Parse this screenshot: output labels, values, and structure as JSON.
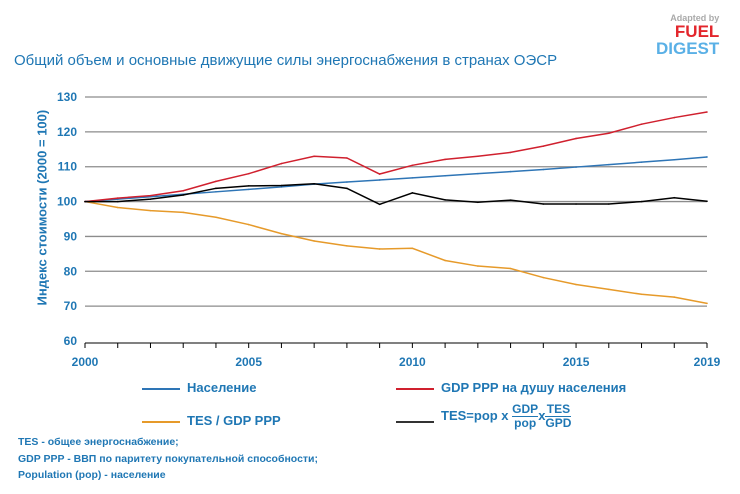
{
  "logo": {
    "line1": "Adapted by",
    "line2": "FUEL",
    "line3": "DIGEST"
  },
  "chart_data": {
    "type": "line",
    "title": "Общий объем и основные движущие силы энергоснабжения в странах ОЭСР",
    "ylabel": "Индекс стоимости (2000 = 100)",
    "xlabel": "",
    "ylim": [
      60,
      130
    ],
    "xlim": [
      2000,
      2019
    ],
    "yticks": [
      60,
      70,
      80,
      90,
      100,
      110,
      120,
      130
    ],
    "xticks": [
      2000,
      2005,
      2010,
      2015,
      2019
    ],
    "grid": true,
    "legend_position": "bottom",
    "x": [
      2000,
      2001,
      2002,
      2003,
      2004,
      2005,
      2006,
      2007,
      2008,
      2009,
      2010,
      2011,
      2012,
      2013,
      2014,
      2015,
      2016,
      2017,
      2018,
      2019
    ],
    "series": [
      {
        "name": "Население",
        "color": "#2e75b6",
        "values": [
          100,
          100.7,
          101.4,
          102.1,
          102.8,
          103.5,
          104.2,
          105,
          105.6,
          106.2,
          106.8,
          107.4,
          108,
          108.6,
          109.2,
          109.9,
          110.6,
          111.3,
          112,
          112.8
        ]
      },
      {
        "name": "GDP PPP на душу населения",
        "color": "#d0202e",
        "values": [
          100,
          101,
          101.7,
          103.1,
          105.8,
          108,
          110.9,
          113,
          112.5,
          107.9,
          110.4,
          112.1,
          113,
          114.1,
          115.9,
          118.1,
          119.6,
          122.2,
          124.1,
          125.7
        ]
      },
      {
        "name": "TES / GDP PPP",
        "color": "#e69a2a",
        "values": [
          100,
          98.3,
          97.4,
          96.9,
          95.5,
          93.4,
          90.8,
          88.7,
          87.3,
          86.4,
          86.6,
          83.1,
          81.5,
          80.8,
          78.2,
          76.2,
          74.8,
          73.4,
          72.6,
          70.8
        ]
      },
      {
        "name": "TES=pop x GDP/pop x TES/GPD",
        "color": "#000000",
        "values": [
          100,
          100,
          100.7,
          101.9,
          103.8,
          104.5,
          104.6,
          105.1,
          103.8,
          99.2,
          102.5,
          100.5,
          99.8,
          100.4,
          99.3,
          99.3,
          99.3,
          100,
          101.1,
          100.1
        ]
      }
    ]
  },
  "legend": {
    "l1": "Население",
    "l2": "GDP PPP на душу населения",
    "l3": "TES / GDP PPP",
    "l4_prefix": "TES=pop x",
    "l4_f1_num": "GDP",
    "l4_f1_den": "pop",
    "l4_x": "x",
    "l4_f2_num": "TES",
    "l4_f2_den": "GPD"
  },
  "notes": [
    "TES - общее энергоснабжение;",
    "GDP PPP - ВВП по паритету покупательной способности;",
    "Population (pop) - население"
  ]
}
